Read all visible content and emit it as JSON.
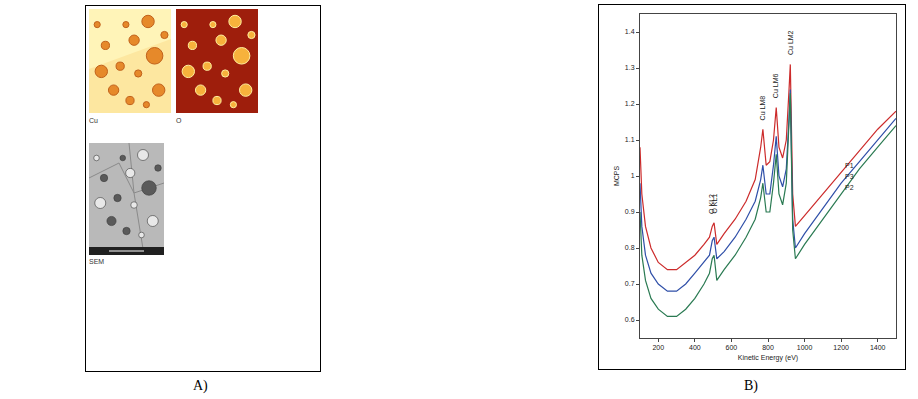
{
  "panel_a": {
    "label": "A)",
    "images": [
      {
        "label": "Cu"
      },
      {
        "label": "O"
      },
      {
        "label": "SEM"
      }
    ]
  },
  "panel_b": {
    "label": "B)"
  },
  "chart_data": {
    "type": "line",
    "x_label": "Kinetic Energy (eV)",
    "y_label": "MCPS",
    "x": [
      100,
      110,
      130,
      160,
      200,
      250,
      300,
      350,
      400,
      450,
      480,
      495,
      505,
      520,
      560,
      620,
      680,
      730,
      760,
      772,
      790,
      810,
      830,
      845,
      860,
      880,
      900,
      915,
      922,
      935,
      950,
      1000,
      1100,
      1200,
      1300,
      1400,
      1500
    ],
    "series": [
      {
        "name": "P1",
        "color": "#cc2b2b",
        "values": [
          1.08,
          0.95,
          0.86,
          0.8,
          0.76,
          0.74,
          0.74,
          0.76,
          0.78,
          0.81,
          0.83,
          0.86,
          0.87,
          0.81,
          0.84,
          0.88,
          0.93,
          0.99,
          1.08,
          1.13,
          1.03,
          1.04,
          1.1,
          1.19,
          1.08,
          1.05,
          1.1,
          1.24,
          1.31,
          0.95,
          0.86,
          0.89,
          0.95,
          1.01,
          1.07,
          1.13,
          1.18
        ]
      },
      {
        "name": "P3",
        "color": "#2f4fa8",
        "values": [
          0.98,
          0.86,
          0.78,
          0.73,
          0.7,
          0.68,
          0.68,
          0.7,
          0.73,
          0.76,
          0.78,
          0.82,
          0.83,
          0.77,
          0.79,
          0.83,
          0.88,
          0.93,
          0.99,
          1.03,
          0.95,
          0.95,
          1.03,
          1.11,
          1.0,
          0.97,
          1.02,
          1.16,
          1.24,
          0.88,
          0.8,
          0.84,
          0.91,
          0.98,
          1.04,
          1.1,
          1.16
        ]
      },
      {
        "name": "P2",
        "color": "#2a7a52",
        "values": [
          0.9,
          0.78,
          0.71,
          0.66,
          0.63,
          0.61,
          0.61,
          0.63,
          0.66,
          0.7,
          0.73,
          0.77,
          0.78,
          0.71,
          0.74,
          0.78,
          0.83,
          0.88,
          0.94,
          0.98,
          0.9,
          0.9,
          0.98,
          1.06,
          0.95,
          0.92,
          0.98,
          1.15,
          1.23,
          0.85,
          0.77,
          0.81,
          0.88,
          0.95,
          1.02,
          1.08,
          1.14
        ]
      }
    ],
    "xlim": [
      100,
      1500
    ],
    "xticks": [
      200,
      400,
      600,
      800,
      1000,
      1200,
      1400
    ],
    "ylim": [
      0.55,
      1.45
    ],
    "yticks": [
      0.6,
      0.7,
      0.8,
      0.9,
      1,
      1.1,
      1.2,
      1.3,
      1.4
    ],
    "grid": false,
    "annotations": [
      {
        "text": "O KL2",
        "x": 490,
        "y": 0.89
      },
      {
        "text": "O KL1",
        "x": 510,
        "y": 0.89
      },
      {
        "text": "Cu LM8",
        "x": 772,
        "y": 1.15
      },
      {
        "text": "Cu LM6",
        "x": 845,
        "y": 1.21
      },
      {
        "text": "Cu LM2",
        "x": 922,
        "y": 1.33
      }
    ]
  }
}
